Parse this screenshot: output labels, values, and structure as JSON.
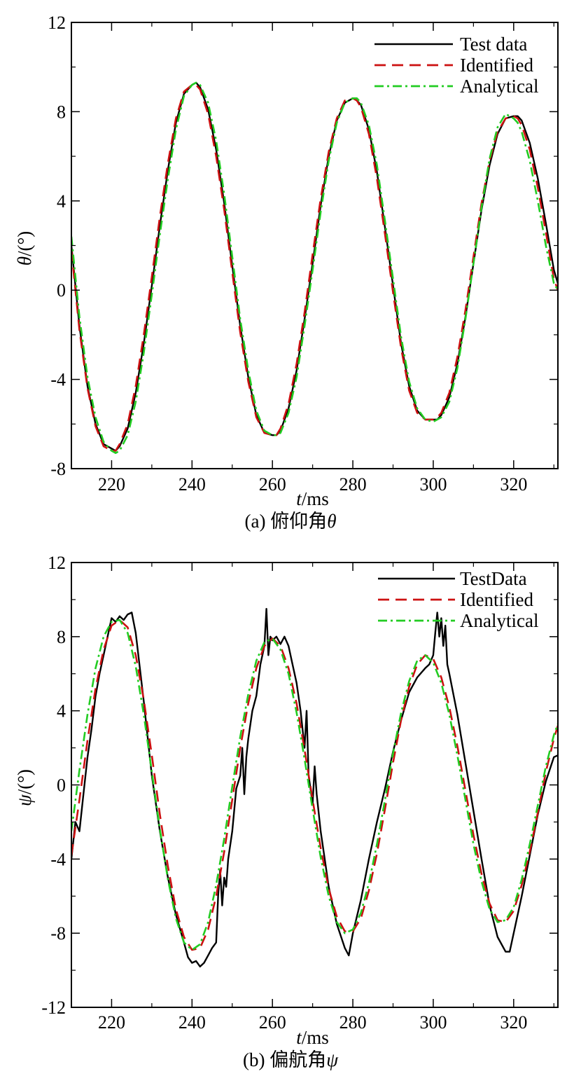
{
  "chart_data": [
    {
      "type": "line",
      "id": "pitch",
      "caption_prefix": "(a) 俯仰角",
      "caption_symbol": "θ",
      "ylabel_symbol": "θ",
      "ylabel_unit": "/(°)",
      "xlabel_var": "t",
      "xlabel_unit": "/ms",
      "xlim": [
        210,
        331
      ],
      "ylim": [
        -8,
        12
      ],
      "xticks": [
        220,
        240,
        260,
        280,
        300,
        320
      ],
      "yticks": [
        -8,
        -4,
        0,
        4,
        8,
        12
      ],
      "ytick_labels": [
        "-8",
        "-4",
        "0",
        "4",
        "8",
        "12"
      ],
      "xtick_labels": [
        "220",
        "240",
        "260",
        "280",
        "300",
        "320"
      ],
      "legend_position": "top-right",
      "series": [
        {
          "name": "Test data",
          "color": "#000000",
          "style": "solid",
          "x": [
            210,
            212,
            214,
            216,
            218,
            220,
            221,
            222,
            224,
            226,
            228,
            230,
            232,
            234,
            236,
            238,
            240,
            241,
            242,
            244,
            246,
            248,
            250,
            252,
            254,
            256,
            258,
            260,
            261,
            262,
            264,
            266,
            268,
            270,
            272,
            274,
            276,
            278,
            280,
            281,
            282,
            284,
            286,
            288,
            290,
            292,
            294,
            296,
            298,
            300,
            301,
            302,
            304,
            306,
            308,
            310,
            312,
            314,
            316,
            318,
            320,
            321,
            322,
            324,
            326,
            328,
            330,
            331
          ],
          "y": [
            2.0,
            -1.6,
            -4.3,
            -6.0,
            -6.9,
            -7.1,
            -7.2,
            -7.0,
            -6.2,
            -4.6,
            -2.4,
            0.2,
            2.9,
            5.4,
            7.5,
            8.8,
            9.2,
            9.3,
            9.1,
            8.1,
            6.3,
            3.9,
            1.1,
            -1.6,
            -3.9,
            -5.6,
            -6.4,
            -6.5,
            -6.5,
            -6.3,
            -5.3,
            -3.6,
            -1.3,
            1.2,
            3.8,
            6.0,
            7.6,
            8.4,
            8.6,
            8.5,
            8.3,
            7.2,
            5.3,
            2.8,
            0.2,
            -2.4,
            -4.3,
            -5.4,
            -5.8,
            -5.8,
            -5.8,
            -5.6,
            -4.8,
            -3.3,
            -1.2,
            1.2,
            3.6,
            5.6,
            7.0,
            7.7,
            7.8,
            7.8,
            7.6,
            6.6,
            5.0,
            3.0,
            0.9,
            0.3
          ]
        },
        {
          "name": "Identified",
          "color": "#cc1111",
          "style": "dashed",
          "x": [
            210,
            212,
            214,
            216,
            218,
            220,
            221,
            222,
            224,
            226,
            228,
            230,
            232,
            234,
            236,
            238,
            240,
            241,
            242,
            244,
            246,
            248,
            250,
            252,
            254,
            256,
            258,
            260,
            261,
            262,
            264,
            266,
            268,
            270,
            272,
            274,
            276,
            278,
            280,
            281,
            282,
            284,
            286,
            288,
            290,
            292,
            294,
            296,
            298,
            300,
            301,
            302,
            304,
            306,
            308,
            310,
            312,
            314,
            316,
            318,
            320,
            321,
            322,
            324,
            326,
            328,
            330,
            331
          ],
          "y": [
            1.8,
            -1.8,
            -4.4,
            -6.1,
            -7.0,
            -7.2,
            -7.2,
            -6.9,
            -6.0,
            -4.3,
            -2.0,
            0.6,
            3.3,
            5.7,
            7.7,
            8.9,
            9.2,
            9.2,
            9.0,
            7.9,
            6.0,
            3.6,
            0.8,
            -1.9,
            -4.1,
            -5.7,
            -6.4,
            -6.5,
            -6.5,
            -6.2,
            -5.1,
            -3.3,
            -1.0,
            1.6,
            4.1,
            6.2,
            7.7,
            8.5,
            8.6,
            8.5,
            8.2,
            7.0,
            5.0,
            2.5,
            -0.1,
            -2.6,
            -4.5,
            -5.5,
            -5.8,
            -5.8,
            -5.7,
            -5.5,
            -4.6,
            -3.0,
            -0.9,
            1.5,
            3.9,
            5.8,
            7.1,
            7.7,
            7.8,
            7.7,
            7.4,
            6.3,
            4.6,
            2.6,
            0.5,
            0.0
          ]
        },
        {
          "name": "Analytical",
          "color": "#22cc22",
          "style": "dashdot",
          "x": [
            210,
            212,
            214,
            216,
            218,
            220,
            221,
            222,
            224,
            226,
            228,
            230,
            232,
            234,
            236,
            238,
            240,
            241,
            242,
            244,
            246,
            248,
            250,
            252,
            254,
            256,
            258,
            260,
            261,
            262,
            264,
            266,
            268,
            270,
            272,
            274,
            276,
            278,
            280,
            281,
            282,
            284,
            286,
            288,
            290,
            292,
            294,
            296,
            298,
            300,
            301,
            302,
            304,
            306,
            308,
            310,
            312,
            314,
            316,
            318,
            320,
            321,
            322,
            324,
            326,
            328,
            330,
            331
          ],
          "y": [
            2.4,
            -1.2,
            -3.9,
            -5.7,
            -6.8,
            -7.2,
            -7.3,
            -7.2,
            -6.5,
            -5.0,
            -2.8,
            -0.2,
            2.5,
            5.0,
            7.2,
            8.7,
            9.2,
            9.3,
            9.2,
            8.4,
            6.7,
            4.3,
            1.5,
            -1.3,
            -3.6,
            -5.4,
            -6.3,
            -6.5,
            -6.5,
            -6.4,
            -5.5,
            -3.9,
            -1.6,
            0.9,
            3.5,
            5.8,
            7.5,
            8.4,
            8.6,
            8.6,
            8.4,
            7.4,
            5.6,
            3.1,
            0.5,
            -2.1,
            -4.1,
            -5.3,
            -5.8,
            -5.9,
            -5.8,
            -5.7,
            -5.0,
            -3.5,
            -1.3,
            1.2,
            3.7,
            5.9,
            7.3,
            7.9,
            7.7,
            7.5,
            7.1,
            5.8,
            4.0,
            2.0,
            0.3,
            0.0
          ]
        }
      ]
    },
    {
      "type": "line",
      "id": "yaw",
      "caption_prefix": "(b) 偏航角",
      "caption_symbol": "ψ",
      "ylabel_symbol": "ψ",
      "ylabel_unit": "/(°)",
      "xlabel_var": "t",
      "xlabel_unit": "/ms",
      "xlim": [
        210,
        331
      ],
      "ylim": [
        -12,
        12
      ],
      "xticks": [
        220,
        240,
        260,
        280,
        300,
        320
      ],
      "yticks": [
        -12,
        -8,
        -4,
        0,
        4,
        8,
        12
      ],
      "ytick_labels": [
        "-12",
        "-8",
        "-4",
        "0",
        "4",
        "8",
        "12"
      ],
      "xtick_labels": [
        "220",
        "240",
        "260",
        "280",
        "300",
        "320"
      ],
      "legend_position": "top-right",
      "series": [
        {
          "name": "TestData",
          "color": "#000000",
          "style": "solid",
          "x": [
            210,
            211,
            212,
            213,
            214,
            215,
            216,
            217,
            218,
            219,
            220,
            221,
            222,
            223,
            224,
            225,
            226,
            228,
            230,
            232,
            234,
            236,
            238,
            239,
            240,
            241,
            242,
            243,
            244,
            245,
            246,
            246.5,
            247,
            247.5,
            248,
            248.5,
            249,
            250,
            251,
            252,
            252.5,
            253,
            253.5,
            254,
            255,
            256,
            257,
            258,
            258.5,
            259,
            259.5,
            260,
            261,
            262,
            263,
            264,
            265,
            266,
            267,
            268,
            268.5,
            269,
            270,
            270.5,
            271,
            272,
            273,
            274,
            276,
            278,
            279,
            280,
            282,
            284,
            286,
            288,
            290,
            292,
            294,
            296,
            298,
            299,
            300,
            300.5,
            301,
            301.5,
            302,
            302.5,
            303,
            303.5,
            304,
            306,
            308,
            310,
            312,
            314,
            316,
            318,
            319,
            320,
            322,
            324,
            326,
            328,
            330,
            331
          ],
          "y": [
            -4.0,
            -2.0,
            -2.5,
            -0.5,
            1.5,
            3.0,
            4.8,
            6.0,
            7.0,
            8.0,
            9.0,
            8.8,
            9.1,
            8.9,
            9.2,
            9.3,
            8.2,
            4.5,
            0.5,
            -2.5,
            -5.0,
            -7.0,
            -8.5,
            -9.3,
            -9.6,
            -9.5,
            -9.8,
            -9.6,
            -9.2,
            -8.8,
            -8.5,
            -6.0,
            -4.6,
            -6.5,
            -5.0,
            -5.5,
            -4.0,
            -2.5,
            -0.2,
            0.5,
            2.0,
            -0.5,
            1.5,
            2.5,
            4.0,
            4.8,
            6.5,
            7.5,
            9.5,
            7.0,
            8.0,
            7.8,
            8.0,
            7.6,
            8.0,
            7.5,
            6.5,
            5.5,
            4.0,
            2.0,
            4.0,
            0.5,
            -1.0,
            1.0,
            -0.5,
            -2.5,
            -4.0,
            -5.5,
            -7.5,
            -8.8,
            -9.2,
            -8.0,
            -6.2,
            -4.0,
            -2.0,
            -0.2,
            1.8,
            3.5,
            5.0,
            5.8,
            6.3,
            6.5,
            7.0,
            8.2,
            9.3,
            8.0,
            9.0,
            7.5,
            8.6,
            6.5,
            6.0,
            3.8,
            1.2,
            -1.4,
            -4.0,
            -6.5,
            -8.2,
            -9.0,
            -9.0,
            -8.0,
            -6.0,
            -3.8,
            -1.6,
            0.2,
            1.5,
            1.6
          ]
        },
        {
          "name": "Identified",
          "color": "#cc1111",
          "style": "dashed",
          "x": [
            210,
            212,
            214,
            216,
            218,
            220,
            222,
            224,
            226,
            228,
            230,
            232,
            234,
            236,
            238,
            240,
            242,
            244,
            246,
            248,
            250,
            252,
            254,
            256,
            258,
            260,
            262,
            264,
            266,
            268,
            270,
            272,
            274,
            276,
            278,
            280,
            282,
            284,
            286,
            288,
            290,
            292,
            294,
            296,
            298,
            300,
            302,
            304,
            306,
            308,
            310,
            312,
            314,
            316,
            318,
            320,
            322,
            324,
            326,
            328,
            330,
            331
          ],
          "y": [
            -3.8,
            -0.8,
            2.4,
            5.2,
            7.3,
            8.6,
            8.9,
            8.5,
            7.0,
            4.6,
            1.6,
            -1.6,
            -4.4,
            -6.7,
            -8.2,
            -8.9,
            -8.8,
            -7.8,
            -6.0,
            -3.6,
            -0.8,
            2.0,
            4.4,
            6.3,
            7.5,
            7.9,
            7.5,
            6.3,
            4.4,
            1.9,
            -0.8,
            -3.4,
            -5.6,
            -7.1,
            -7.9,
            -7.9,
            -7.2,
            -5.7,
            -3.7,
            -1.3,
            1.2,
            3.5,
            5.3,
            6.5,
            7.0,
            6.8,
            5.8,
            4.2,
            2.1,
            -0.3,
            -2.7,
            -4.8,
            -6.4,
            -7.3,
            -7.4,
            -6.8,
            -5.4,
            -3.6,
            -1.5,
            0.7,
            2.5,
            3.2
          ]
        },
        {
          "name": "Analytical",
          "color": "#22cc22",
          "style": "dashdot",
          "x": [
            210,
            212,
            214,
            216,
            218,
            220,
            222,
            224,
            226,
            228,
            230,
            232,
            234,
            236,
            238,
            240,
            242,
            244,
            246,
            248,
            250,
            252,
            254,
            256,
            258,
            260,
            262,
            264,
            266,
            268,
            270,
            272,
            274,
            276,
            278,
            280,
            282,
            284,
            286,
            288,
            290,
            292,
            294,
            296,
            298,
            300,
            302,
            304,
            306,
            308,
            310,
            312,
            314,
            316,
            318,
            320,
            322,
            324,
            326,
            328,
            330,
            331
          ],
          "y": [
            -2.5,
            0.8,
            3.8,
            6.3,
            8.0,
            8.8,
            8.9,
            8.2,
            6.4,
            3.8,
            0.7,
            -2.4,
            -5.1,
            -7.2,
            -8.5,
            -8.9,
            -8.6,
            -7.4,
            -5.4,
            -2.9,
            -0.1,
            2.6,
            4.9,
            6.7,
            7.7,
            7.9,
            7.3,
            6.0,
            3.9,
            1.4,
            -1.3,
            -3.9,
            -6.0,
            -7.4,
            -8.0,
            -7.8,
            -6.9,
            -5.3,
            -3.2,
            -0.8,
            1.7,
            3.9,
            5.6,
            6.7,
            7.0,
            6.6,
            5.5,
            3.8,
            1.6,
            -0.8,
            -3.2,
            -5.2,
            -6.7,
            -7.4,
            -7.3,
            -6.6,
            -5.1,
            -3.2,
            -1.1,
            1.0,
            2.7,
            3.3
          ]
        }
      ]
    }
  ]
}
